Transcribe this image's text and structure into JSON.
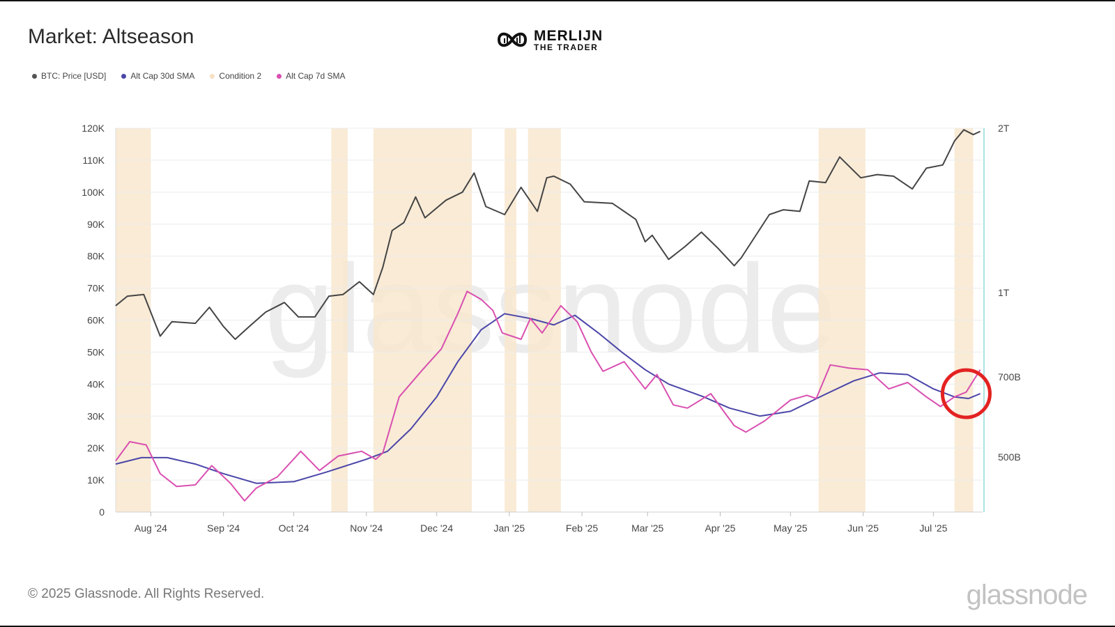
{
  "title": "Market: Altseason",
  "logo": {
    "line1": "MERLIJN",
    "line2": "THE TRADER",
    "icon": "infinity-logo-icon"
  },
  "legend": [
    {
      "label": "BTC: Price [USD]",
      "color": "#555555"
    },
    {
      "label": "Alt Cap 30d SMA",
      "color": "#4a45a8"
    },
    {
      "label": "Condition 2",
      "color": "#f8e7cf"
    },
    {
      "label": "Alt Cap 7d SMA",
      "color": "#d94fb0"
    }
  ],
  "footer": {
    "copyright": "© 2025 Glassnode. All Rights Reserved.",
    "brand": "glassnode"
  },
  "watermark": "glassnode",
  "chart_data": {
    "type": "line",
    "x_start": "2024-07-17",
    "x_end": "2025-07-22",
    "x_ticks": [
      "Aug '24",
      "Sep '24",
      "Oct '24",
      "Nov '24",
      "Dec '24",
      "Jan '25",
      "Feb '25",
      "Mar '25",
      "Apr '25",
      "May '25",
      "Jun '25",
      "Jul '25"
    ],
    "y_left": {
      "ticks": [
        "0",
        "10K",
        "20K",
        "30K",
        "40K",
        "50K",
        "60K",
        "70K",
        "80K",
        "90K",
        "100K",
        "110K",
        "120K"
      ],
      "lim": [
        0,
        120000
      ]
    },
    "y_right": {
      "ticks": [
        "2T",
        "1T",
        "700B",
        "500B"
      ],
      "scale": "log"
    },
    "grid": true,
    "legend_position": "top-left",
    "highlight": {
      "label": "",
      "date": "2025-07-15",
      "color": "#e32222"
    },
    "condition_bands": [
      [
        "2024-07-17",
        "2024-08-01"
      ],
      [
        "2024-10-17",
        "2024-10-24"
      ],
      [
        "2024-11-04",
        "2024-12-16"
      ],
      [
        "2024-12-30",
        "2025-01-04"
      ],
      [
        "2025-01-09",
        "2025-01-23"
      ],
      [
        "2025-05-13",
        "2025-06-02"
      ],
      [
        "2025-07-10",
        "2025-07-18"
      ]
    ],
    "series": [
      {
        "name": "BTC: Price [USD]",
        "axis": "left",
        "color": "#444444",
        "points": [
          [
            "2024-07-17",
            64500
          ],
          [
            "2024-07-22",
            67500
          ],
          [
            "2024-07-29",
            68000
          ],
          [
            "2024-08-05",
            55000
          ],
          [
            "2024-08-10",
            59500
          ],
          [
            "2024-08-20",
            59000
          ],
          [
            "2024-08-26",
            64000
          ],
          [
            "2024-09-01",
            58000
          ],
          [
            "2024-09-06",
            54000
          ],
          [
            "2024-09-12",
            58000
          ],
          [
            "2024-09-19",
            62500
          ],
          [
            "2024-09-27",
            65500
          ],
          [
            "2024-10-03",
            61000
          ],
          [
            "2024-10-10",
            61000
          ],
          [
            "2024-10-16",
            67500
          ],
          [
            "2024-10-22",
            68000
          ],
          [
            "2024-10-29",
            72000
          ],
          [
            "2024-11-04",
            68000
          ],
          [
            "2024-11-08",
            76500
          ],
          [
            "2024-11-12",
            88000
          ],
          [
            "2024-11-17",
            90500
          ],
          [
            "2024-11-22",
            98500
          ],
          [
            "2024-11-26",
            92000
          ],
          [
            "2024-12-05",
            97500
          ],
          [
            "2024-12-12",
            100000
          ],
          [
            "2024-12-17",
            106000
          ],
          [
            "2024-12-22",
            95500
          ],
          [
            "2024-12-30",
            93000
          ],
          [
            "2025-01-06",
            101500
          ],
          [
            "2025-01-13",
            94000
          ],
          [
            "2025-01-17",
            104500
          ],
          [
            "2025-01-20",
            105000
          ],
          [
            "2025-01-27",
            102500
          ],
          [
            "2025-02-02",
            97000
          ],
          [
            "2025-02-14",
            96500
          ],
          [
            "2025-02-24",
            91500
          ],
          [
            "2025-02-28",
            84500
          ],
          [
            "2025-03-03",
            86500
          ],
          [
            "2025-03-10",
            79000
          ],
          [
            "2025-03-17",
            83000
          ],
          [
            "2025-03-24",
            87500
          ],
          [
            "2025-03-31",
            82500
          ],
          [
            "2025-04-07",
            77000
          ],
          [
            "2025-04-10",
            79500
          ],
          [
            "2025-04-22",
            93000
          ],
          [
            "2025-04-28",
            94500
          ],
          [
            "2025-05-05",
            94000
          ],
          [
            "2025-05-09",
            103500
          ],
          [
            "2025-05-16",
            103000
          ],
          [
            "2025-05-22",
            111000
          ],
          [
            "2025-05-31",
            104500
          ],
          [
            "2025-06-07",
            105500
          ],
          [
            "2025-06-14",
            105000
          ],
          [
            "2025-06-22",
            101000
          ],
          [
            "2025-06-28",
            107500
          ],
          [
            "2025-07-05",
            108500
          ],
          [
            "2025-07-10",
            116000
          ],
          [
            "2025-07-14",
            119500
          ],
          [
            "2025-07-18",
            118000
          ],
          [
            "2025-07-21",
            119000
          ]
        ]
      },
      {
        "name": "Alt Cap 30d SMA",
        "axis": "left",
        "color": "#4a45a8",
        "points": [
          [
            "2024-07-17",
            15000
          ],
          [
            "2024-07-28",
            17000
          ],
          [
            "2024-08-08",
            17000
          ],
          [
            "2024-08-20",
            15000
          ],
          [
            "2024-09-01",
            12000
          ],
          [
            "2024-09-15",
            9000
          ],
          [
            "2024-10-01",
            9500
          ],
          [
            "2024-10-15",
            12500
          ],
          [
            "2024-11-01",
            16500
          ],
          [
            "2024-11-10",
            19000
          ],
          [
            "2024-11-20",
            26000
          ],
          [
            "2024-12-01",
            36000
          ],
          [
            "2024-12-10",
            47000
          ],
          [
            "2024-12-20",
            57000
          ],
          [
            "2024-12-30",
            62000
          ],
          [
            "2025-01-10",
            60500
          ],
          [
            "2025-01-20",
            58500
          ],
          [
            "2025-01-29",
            61500
          ],
          [
            "2025-02-08",
            56000
          ],
          [
            "2025-02-18",
            50000
          ],
          [
            "2025-02-28",
            44500
          ],
          [
            "2025-03-10",
            40000
          ],
          [
            "2025-03-25",
            36000
          ],
          [
            "2025-04-05",
            32500
          ],
          [
            "2025-04-18",
            30000
          ],
          [
            "2025-05-01",
            31500
          ],
          [
            "2025-05-15",
            36500
          ],
          [
            "2025-05-28",
            41000
          ],
          [
            "2025-06-08",
            43500
          ],
          [
            "2025-06-20",
            43000
          ],
          [
            "2025-07-01",
            38500
          ],
          [
            "2025-07-10",
            36000
          ],
          [
            "2025-07-16",
            35500
          ],
          [
            "2025-07-21",
            37000
          ]
        ]
      },
      {
        "name": "Alt Cap 7d SMA",
        "axis": "left",
        "color": "#d94fb0",
        "points": [
          [
            "2024-07-17",
            16000
          ],
          [
            "2024-07-23",
            22000
          ],
          [
            "2024-07-30",
            21000
          ],
          [
            "2024-08-05",
            12000
          ],
          [
            "2024-08-12",
            8000
          ],
          [
            "2024-08-20",
            8500
          ],
          [
            "2024-08-27",
            14500
          ],
          [
            "2024-09-04",
            9000
          ],
          [
            "2024-09-10",
            3500
          ],
          [
            "2024-09-15",
            7500
          ],
          [
            "2024-09-24",
            11000
          ],
          [
            "2024-10-04",
            19000
          ],
          [
            "2024-10-12",
            13000
          ],
          [
            "2024-10-20",
            17500
          ],
          [
            "2024-10-30",
            19000
          ],
          [
            "2024-11-05",
            16500
          ],
          [
            "2024-11-08",
            18500
          ],
          [
            "2024-11-15",
            36000
          ],
          [
            "2024-11-25",
            44500
          ],
          [
            "2024-12-03",
            51000
          ],
          [
            "2024-12-10",
            62000
          ],
          [
            "2024-12-14",
            69000
          ],
          [
            "2024-12-20",
            66500
          ],
          [
            "2024-12-25",
            63000
          ],
          [
            "2024-12-29",
            56000
          ],
          [
            "2025-01-06",
            54000
          ],
          [
            "2025-01-10",
            60500
          ],
          [
            "2025-01-15",
            56000
          ],
          [
            "2025-01-23",
            64500
          ],
          [
            "2025-01-30",
            59500
          ],
          [
            "2025-02-05",
            50000
          ],
          [
            "2025-02-10",
            44000
          ],
          [
            "2025-02-19",
            47000
          ],
          [
            "2025-02-28",
            38500
          ],
          [
            "2025-03-05",
            43000
          ],
          [
            "2025-03-12",
            33500
          ],
          [
            "2025-03-18",
            32500
          ],
          [
            "2025-03-28",
            37000
          ],
          [
            "2025-04-07",
            27000
          ],
          [
            "2025-04-12",
            25000
          ],
          [
            "2025-04-20",
            28500
          ],
          [
            "2025-05-01",
            35000
          ],
          [
            "2025-05-08",
            36500
          ],
          [
            "2025-05-12",
            35500
          ],
          [
            "2025-05-18",
            46000
          ],
          [
            "2025-05-26",
            45000
          ],
          [
            "2025-06-03",
            44500
          ],
          [
            "2025-06-12",
            38500
          ],
          [
            "2025-06-20",
            40500
          ],
          [
            "2025-06-28",
            36000
          ],
          [
            "2025-07-04",
            33000
          ],
          [
            "2025-07-10",
            36000
          ],
          [
            "2025-07-15",
            37500
          ],
          [
            "2025-07-21",
            44500
          ]
        ]
      }
    ]
  }
}
